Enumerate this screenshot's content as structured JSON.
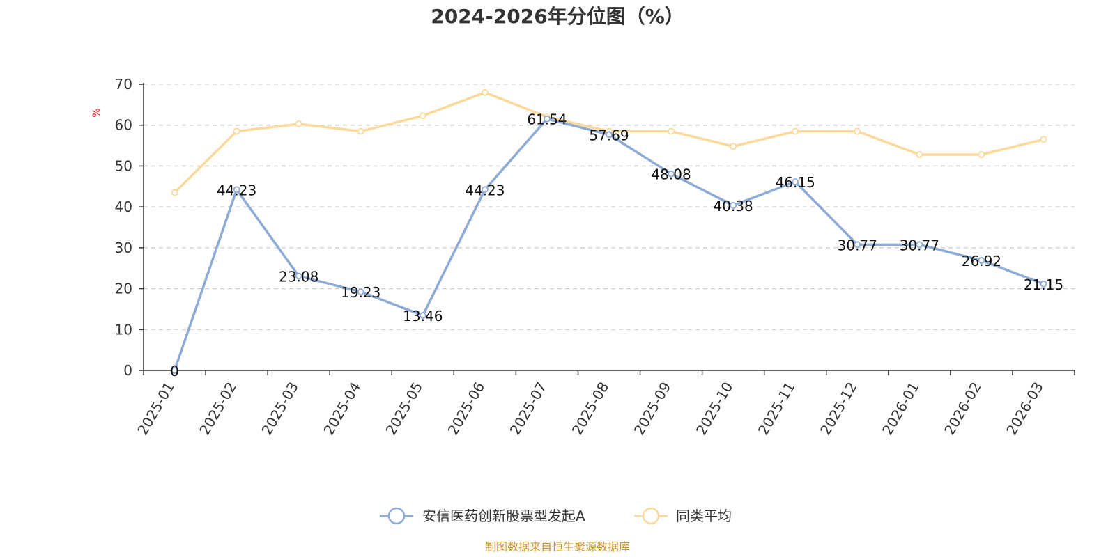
{
  "chart_data": {
    "type": "line",
    "title": "2024-2026年分位图（%）",
    "ylabel": "%",
    "xlabel": "",
    "ylim": [
      0,
      70
    ],
    "yticks": [
      0,
      10,
      20,
      30,
      40,
      50,
      60,
      70
    ],
    "grid": true,
    "legend_position": "bottom",
    "categories": [
      "2025-01",
      "2025-02",
      "2025-03",
      "2025-04",
      "2025-05",
      "2025-06",
      "2025-07",
      "2025-08",
      "2025-09",
      "2025-10",
      "2025-11",
      "2025-12",
      "2026-01",
      "2026-02",
      "2026-03"
    ],
    "series": [
      {
        "name": "安信医药创新股票型发起A",
        "color": "#8eabd6",
        "show_labels": true,
        "values": [
          0,
          44.23,
          23.08,
          19.23,
          13.46,
          44.23,
          61.54,
          57.69,
          48.08,
          40.38,
          46.15,
          30.77,
          30.77,
          26.92,
          21.15
        ]
      },
      {
        "name": "同类平均",
        "color": "#fbd99b",
        "show_labels": false,
        "values": [
          43.5,
          58.5,
          60.3,
          58.5,
          62.3,
          68,
          62,
          58.5,
          58.5,
          54.8,
          58.5,
          58.5,
          52.8,
          52.8,
          56.5
        ]
      }
    ],
    "source_text": "制图数据来自恒生聚源数据库",
    "source_color": "#c8922a",
    "ylabel_color": "#ff0000"
  }
}
